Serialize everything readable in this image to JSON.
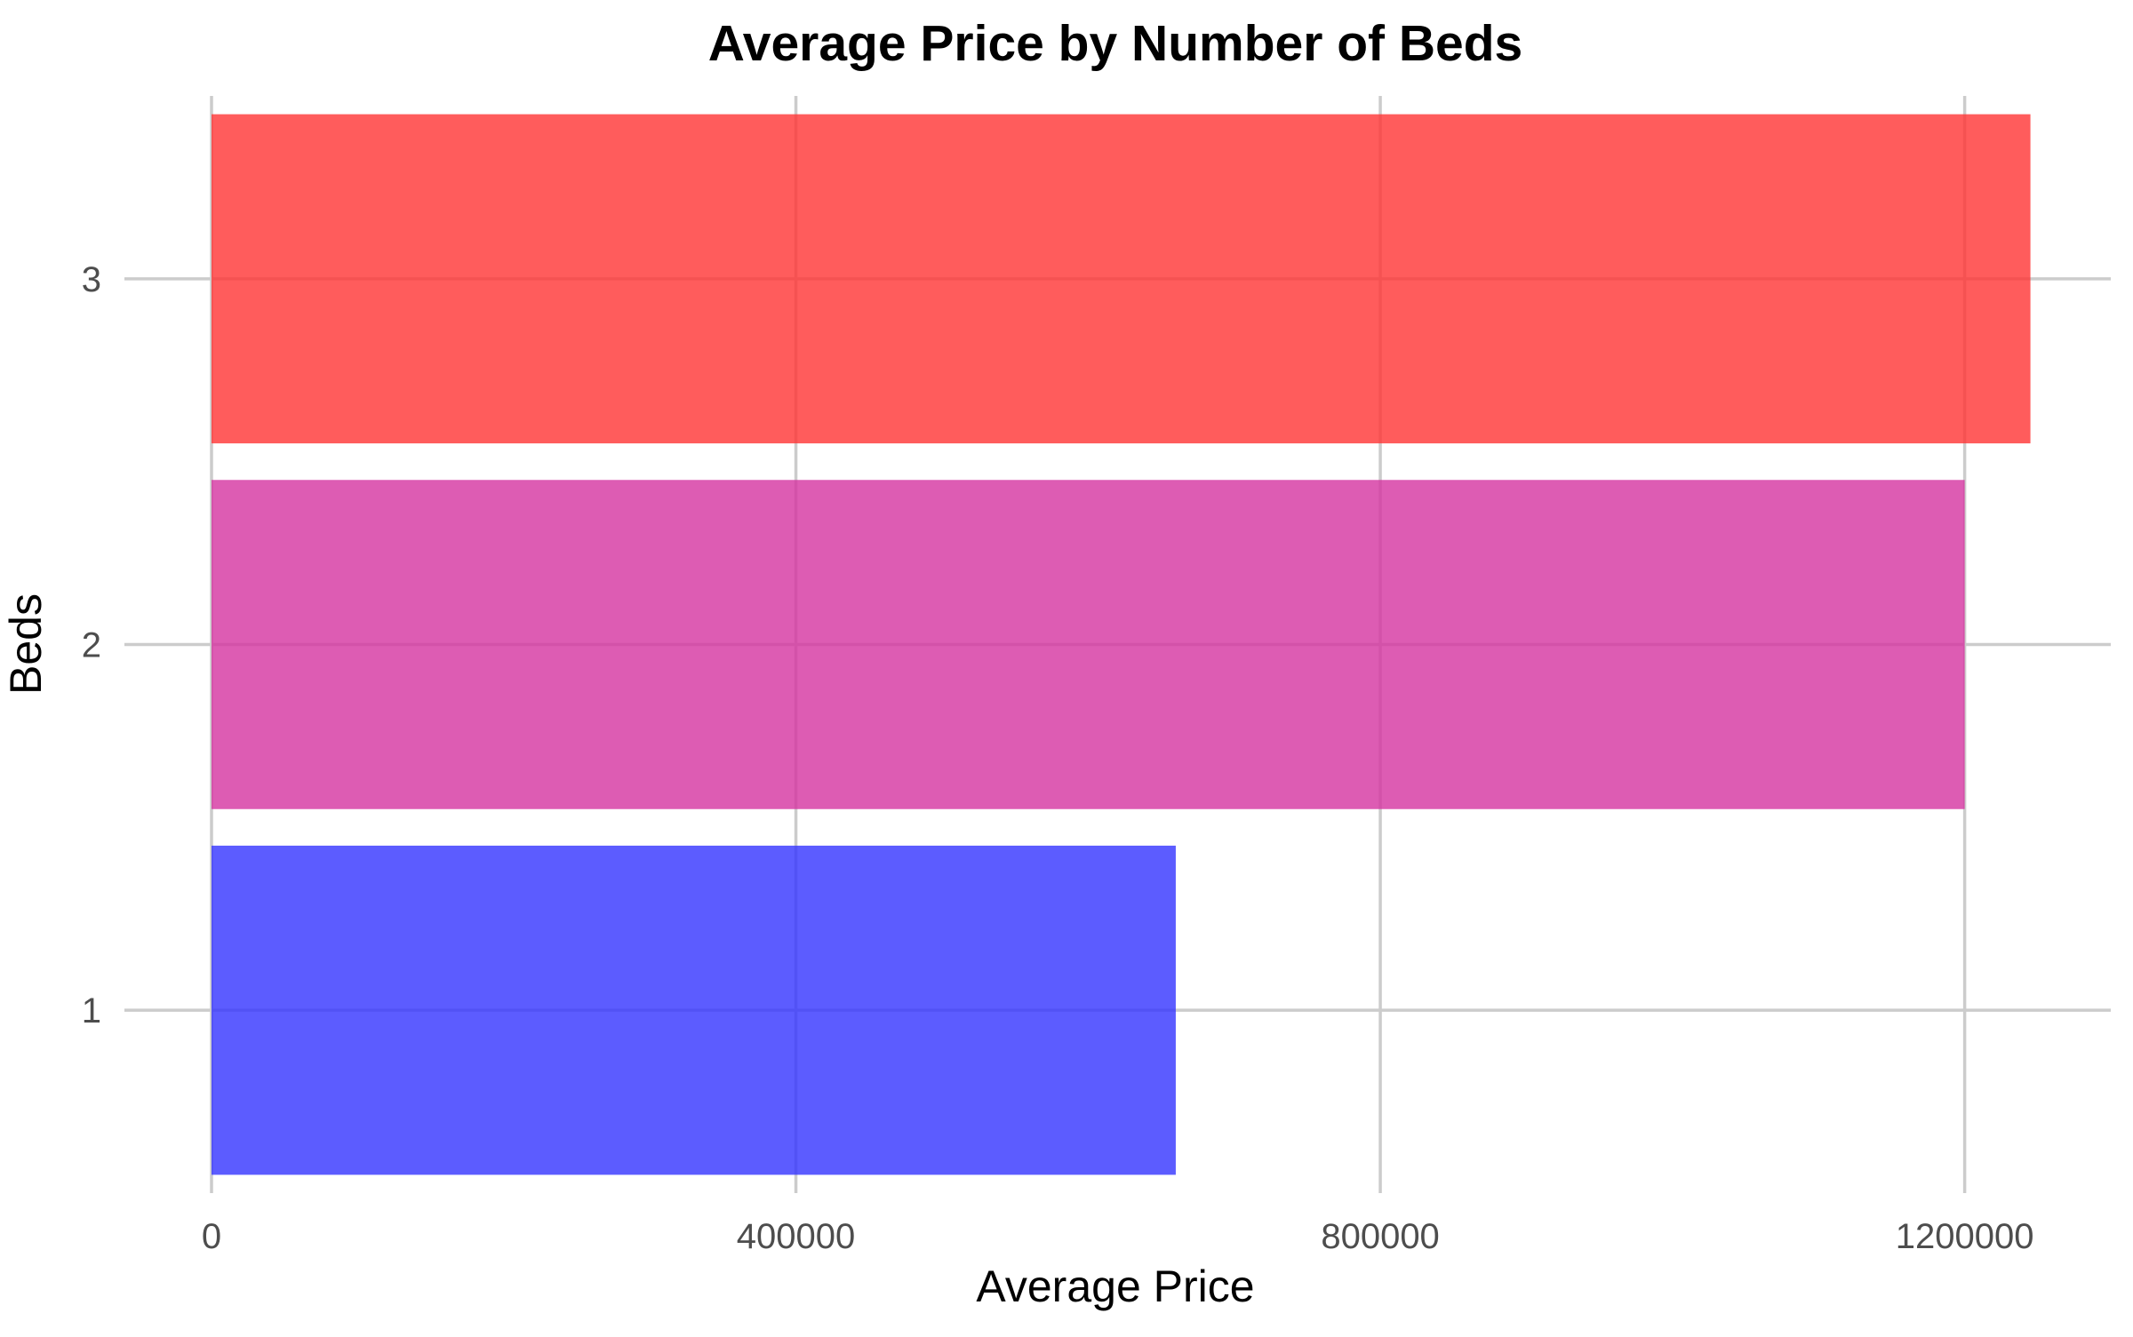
{
  "chart_data": {
    "type": "bar",
    "orientation": "horizontal",
    "title": "Average Price by Number of Beds",
    "xlabel": "Average Price",
    "ylabel": "Beds",
    "categories": [
      "1",
      "2",
      "3"
    ],
    "values": [
      660000,
      1200000,
      1245000
    ],
    "bar_colors": [
      "#3333ff",
      "#d433a0",
      "#ff3333"
    ],
    "xlim": [
      0,
      1300000
    ],
    "xticks": [
      0,
      400000,
      800000,
      1200000
    ],
    "xtick_labels": [
      "0",
      "400000",
      "800000",
      "1200000"
    ],
    "grid": true,
    "legend": "none"
  }
}
